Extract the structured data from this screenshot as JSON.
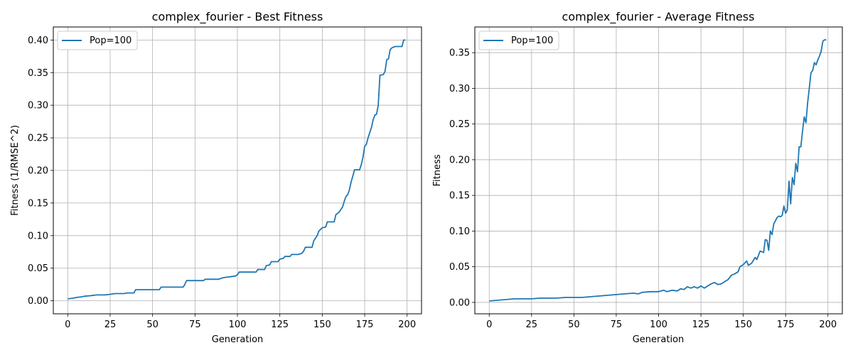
{
  "chart_data": [
    {
      "type": "line",
      "title": "complex_fourier - Best Fitness",
      "xlabel": "Generation",
      "ylabel": "Fitness (1/RMSE^2)",
      "xlim": [
        -8.5,
        208.5
      ],
      "ylim": [
        -0.02,
        0.42
      ],
      "xticks": [
        0,
        25,
        50,
        75,
        100,
        125,
        150,
        175,
        200
      ],
      "yticks": [
        0.0,
        0.05,
        0.1,
        0.15,
        0.2,
        0.25,
        0.3,
        0.35,
        0.4
      ],
      "ytick_labels": [
        "0.00",
        "0.05",
        "0.10",
        "0.15",
        "0.20",
        "0.25",
        "0.30",
        "0.35",
        "0.40"
      ],
      "grid": true,
      "legend": "upper-left",
      "line_color": "#1f77b4",
      "series": [
        {
          "name": "Pop=100",
          "points": [
            [
              0,
              0.003
            ],
            [
              3,
              0.004
            ],
            [
              5,
              0.005
            ],
            [
              8,
              0.006
            ],
            [
              10,
              0.007
            ],
            [
              14,
              0.008
            ],
            [
              17,
              0.009
            ],
            [
              22,
              0.009
            ],
            [
              25,
              0.01
            ],
            [
              28,
              0.011
            ],
            [
              33,
              0.011
            ],
            [
              35,
              0.012
            ],
            [
              39,
              0.012
            ],
            [
              40,
              0.017
            ],
            [
              54,
              0.017
            ],
            [
              55,
              0.021
            ],
            [
              68,
              0.021
            ],
            [
              69,
              0.025
            ],
            [
              70,
              0.031
            ],
            [
              80,
              0.031
            ],
            [
              81,
              0.033
            ],
            [
              89,
              0.033
            ],
            [
              91,
              0.035
            ],
            [
              93,
              0.036
            ],
            [
              96,
              0.037
            ],
            [
              99,
              0.038
            ],
            [
              100,
              0.04
            ],
            [
              101,
              0.044
            ],
            [
              111,
              0.044
            ],
            [
              112,
              0.048
            ],
            [
              116,
              0.048
            ],
            [
              117,
              0.054
            ],
            [
              119,
              0.055
            ],
            [
              120,
              0.06
            ],
            [
              124,
              0.06
            ],
            [
              125,
              0.064
            ],
            [
              127,
              0.065
            ],
            [
              128,
              0.068
            ],
            [
              131,
              0.068
            ],
            [
              132,
              0.071
            ],
            [
              136,
              0.071
            ],
            [
              138,
              0.073
            ],
            [
              139,
              0.076
            ],
            [
              140,
              0.082
            ],
            [
              144,
              0.082
            ],
            [
              145,
              0.092
            ],
            [
              147,
              0.1
            ],
            [
              148,
              0.107
            ],
            [
              150,
              0.112
            ],
            [
              152,
              0.113
            ],
            [
              153,
              0.121
            ],
            [
              157,
              0.121
            ],
            [
              158,
              0.132
            ],
            [
              160,
              0.136
            ],
            [
              162,
              0.144
            ],
            [
              163,
              0.153
            ],
            [
              164,
              0.16
            ],
            [
              165,
              0.163
            ],
            [
              166,
              0.17
            ],
            [
              167,
              0.182
            ],
            [
              168,
              0.191
            ],
            [
              169,
              0.201
            ],
            [
              172,
              0.201
            ],
            [
              173,
              0.209
            ],
            [
              174,
              0.22
            ],
            [
              175,
              0.237
            ],
            [
              176,
              0.24
            ],
            [
              177,
              0.25
            ],
            [
              178,
              0.258
            ],
            [
              179,
              0.266
            ],
            [
              180,
              0.278
            ],
            [
              181,
              0.285
            ],
            [
              182,
              0.286
            ],
            [
              183,
              0.3
            ],
            [
              184,
              0.346
            ],
            [
              186,
              0.347
            ],
            [
              187,
              0.352
            ],
            [
              188,
              0.37
            ],
            [
              189,
              0.371
            ],
            [
              190,
              0.385
            ],
            [
              191,
              0.388
            ],
            [
              193,
              0.39
            ],
            [
              197,
              0.39
            ],
            [
              198,
              0.4
            ],
            [
              199,
              0.4
            ]
          ]
        }
      ]
    },
    {
      "type": "line",
      "title": "complex_fourier - Average Fitness",
      "xlabel": "Generation",
      "ylabel": "Fitness",
      "xlim": [
        -8.5,
        208.5
      ],
      "ylim": [
        -0.016,
        0.386
      ],
      "xticks": [
        0,
        25,
        50,
        75,
        100,
        125,
        150,
        175,
        200
      ],
      "yticks": [
        0.0,
        0.05,
        0.1,
        0.15,
        0.2,
        0.25,
        0.3,
        0.35
      ],
      "ytick_labels": [
        "0.00",
        "0.05",
        "0.10",
        "0.15",
        "0.20",
        "0.25",
        "0.30",
        "0.35"
      ],
      "grid": true,
      "legend": "upper-left",
      "line_color": "#1f77b4",
      "series": [
        {
          "name": "Pop=100",
          "points": [
            [
              0,
              0.002
            ],
            [
              5,
              0.003
            ],
            [
              10,
              0.004
            ],
            [
              15,
              0.005
            ],
            [
              20,
              0.005
            ],
            [
              25,
              0.005
            ],
            [
              30,
              0.006
            ],
            [
              35,
              0.006
            ],
            [
              40,
              0.006
            ],
            [
              45,
              0.007
            ],
            [
              50,
              0.007
            ],
            [
              55,
              0.007
            ],
            [
              60,
              0.008
            ],
            [
              65,
              0.009
            ],
            [
              70,
              0.01
            ],
            [
              75,
              0.011
            ],
            [
              80,
              0.012
            ],
            [
              85,
              0.013
            ],
            [
              88,
              0.012
            ],
            [
              90,
              0.014
            ],
            [
              95,
              0.015
            ],
            [
              100,
              0.015
            ],
            [
              103,
              0.017
            ],
            [
              105,
              0.015
            ],
            [
              108,
              0.017
            ],
            [
              111,
              0.016
            ],
            [
              113,
              0.019
            ],
            [
              115,
              0.018
            ],
            [
              117,
              0.022
            ],
            [
              119,
              0.02
            ],
            [
              121,
              0.022
            ],
            [
              123,
              0.02
            ],
            [
              125,
              0.023
            ],
            [
              127,
              0.02
            ],
            [
              129,
              0.023
            ],
            [
              131,
              0.026
            ],
            [
              133,
              0.028
            ],
            [
              135,
              0.025
            ],
            [
              137,
              0.026
            ],
            [
              139,
              0.029
            ],
            [
              141,
              0.032
            ],
            [
              143,
              0.038
            ],
            [
              145,
              0.04
            ],
            [
              147,
              0.043
            ],
            [
              148,
              0.05
            ],
            [
              150,
              0.053
            ],
            [
              152,
              0.058
            ],
            [
              153,
              0.052
            ],
            [
              155,
              0.055
            ],
            [
              157,
              0.063
            ],
            [
              158,
              0.06
            ],
            [
              160,
              0.072
            ],
            [
              162,
              0.07
            ],
            [
              163,
              0.088
            ],
            [
              164,
              0.087
            ],
            [
              165,
              0.073
            ],
            [
              166,
              0.1
            ],
            [
              167,
              0.095
            ],
            [
              168,
              0.11
            ],
            [
              170,
              0.119
            ],
            [
              171,
              0.121
            ],
            [
              172,
              0.12
            ],
            [
              173,
              0.122
            ],
            [
              174,
              0.135
            ],
            [
              175,
              0.125
            ],
            [
              176,
              0.13
            ],
            [
              177,
              0.17
            ],
            [
              178,
              0.138
            ],
            [
              179,
              0.175
            ],
            [
              180,
              0.165
            ],
            [
              181,
              0.195
            ],
            [
              182,
              0.183
            ],
            [
              183,
              0.218
            ],
            [
              184,
              0.218
            ],
            [
              185,
              0.24
            ],
            [
              186,
              0.26
            ],
            [
              187,
              0.252
            ],
            [
              188,
              0.28
            ],
            [
              189,
              0.3
            ],
            [
              190,
              0.322
            ],
            [
              191,
              0.325
            ],
            [
              192,
              0.336
            ],
            [
              193,
              0.333
            ],
            [
              194,
              0.34
            ],
            [
              195,
              0.345
            ],
            [
              196,
              0.352
            ],
            [
              197,
              0.366
            ],
            [
              198,
              0.368
            ],
            [
              199,
              0.368
            ]
          ]
        }
      ]
    }
  ]
}
